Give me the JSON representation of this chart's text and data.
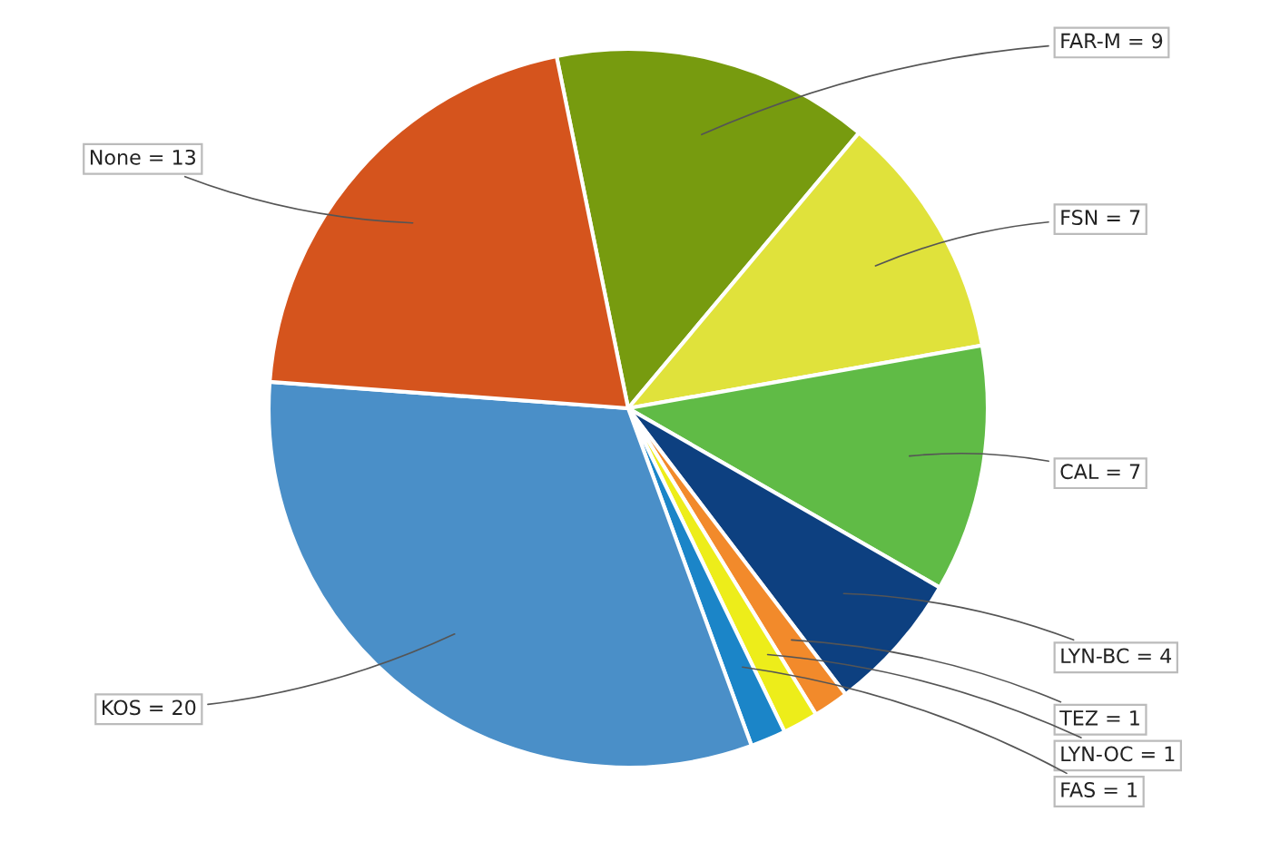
{
  "chart_data": {
    "type": "pie",
    "categories": [
      "FAR-M = 9",
      "FSN = 7",
      "CAL = 7",
      "LYN-BC = 4",
      "TEZ = 1",
      "LYN-OC = 1",
      "FAS = 1",
      "KOS = 20",
      "None = 13"
    ],
    "values": [
      9,
      7,
      7,
      4,
      1,
      1,
      1,
      20,
      13
    ],
    "colors": [
      "#779b0f",
      "#e0e23b",
      "#60bb46",
      "#0d4080",
      "#f28a2b",
      "#eded1a",
      "#1b85c8",
      "#4a8fc8",
      "#d5541d"
    ],
    "legend": false
  }
}
